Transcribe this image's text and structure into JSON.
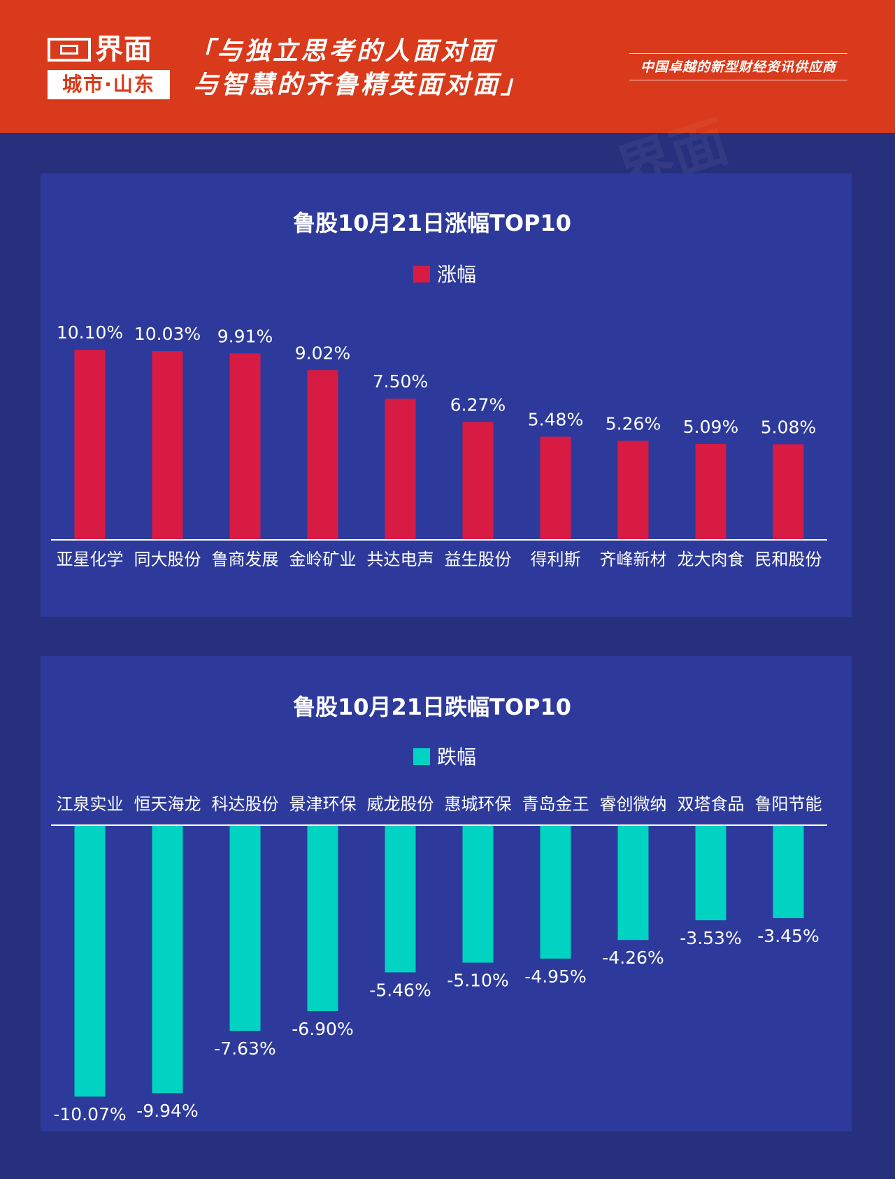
{
  "header": {
    "logo_name": "界面",
    "logo_city": "城市·山东",
    "slogan_line1": "「与独立思考的人面对面",
    "slogan_line2": "与智慧的齐鲁精英面对面」",
    "tagline": "中国卓越的新型财经资讯供应商"
  },
  "colors": {
    "header_bg": "#d93a1b",
    "page_bg": "#27307d",
    "panel_bg": "#2d3a9b",
    "gain_bar": "#d81b43",
    "loss_bar": "#00d3c1"
  },
  "chart_data": [
    {
      "type": "bar",
      "title": "鲁股10月21日涨幅TOP10",
      "legend": "涨幅",
      "legend_position": "top-center",
      "categories": [
        "亚星化学",
        "同大股份",
        "鲁商发展",
        "金岭矿业",
        "共达电声",
        "益生股份",
        "得利斯",
        "齐峰新材",
        "龙大肉食",
        "民和股份"
      ],
      "series": [
        {
          "name": "涨幅",
          "values": [
            10.1,
            10.03,
            9.91,
            9.02,
            7.5,
            6.27,
            5.48,
            5.26,
            5.09,
            5.08
          ]
        }
      ],
      "data_labels": [
        "10.10%",
        "10.03%",
        "9.91%",
        "9.02%",
        "7.50%",
        "6.27%",
        "5.48%",
        "5.26%",
        "5.09%",
        "5.08%"
      ],
      "ylim": [
        0,
        11
      ],
      "grid": false
    },
    {
      "type": "bar",
      "title": "鲁股10月21日跌幅TOP10",
      "legend": "跌幅",
      "legend_position": "top-center",
      "categories": [
        "江泉实业",
        "恒天海龙",
        "科达股份",
        "景津环保",
        "威龙股份",
        "惠城环保",
        "青岛金王",
        "睿创微纳",
        "双塔食品",
        "鲁阳节能"
      ],
      "series": [
        {
          "name": "跌幅",
          "values": [
            -10.07,
            -9.94,
            -7.63,
            -6.9,
            -5.46,
            -5.1,
            -4.95,
            -4.26,
            -3.53,
            -3.45
          ]
        }
      ],
      "data_labels": [
        "-10.07%",
        "-9.94%",
        "-7.63%",
        "-6.90%",
        "-5.46%",
        "-5.10%",
        "-4.95%",
        "-4.26%",
        "-3.53%",
        "-3.45%"
      ],
      "ylim": [
        -11,
        0
      ],
      "grid": false
    }
  ]
}
